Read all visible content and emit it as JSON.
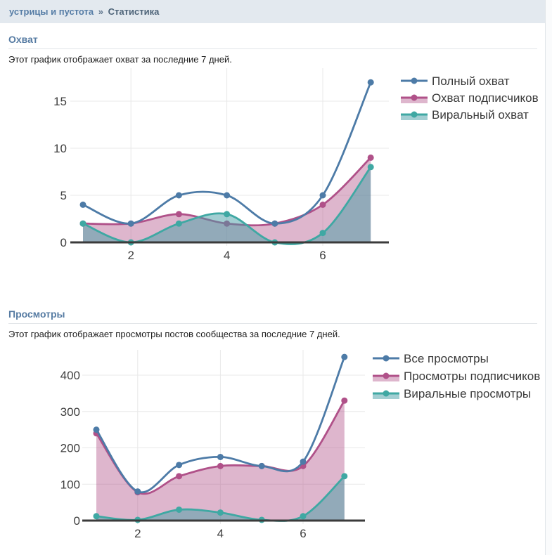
{
  "breadcrumb": {
    "group": "устрицы и пустота",
    "separator": "»",
    "current": "Статистика"
  },
  "sections": [
    {
      "title": "Охват",
      "description": "Этот график отображает охват за последние 7 дней."
    },
    {
      "title": "Просмотры",
      "description": "Этот график отображает просмотры постов сообщества за последние 7 дней."
    }
  ],
  "colors": {
    "topbar_bg": "#e3e9ef",
    "section_title": "#577ca3",
    "blue_line": "#4d7ba7",
    "pink_line": "#b05189",
    "teal_line": "#3fa8a3",
    "pink_fill": "rgba(176,81,137,0.42)",
    "teal_fill": "rgba(70,158,166,0.5)",
    "axis": "#3b3b3b",
    "grid": "#e8e8e8",
    "tick_label": "#3f3f3f",
    "legend_label": "#3a3a3a"
  },
  "chart_data": [
    {
      "type": "area",
      "title": "Охват",
      "x": [
        1,
        2,
        3,
        4,
        5,
        6,
        7
      ],
      "xticks": [
        2,
        4,
        6
      ],
      "yticks": [
        0,
        5,
        10,
        15
      ],
      "ylim": [
        0,
        17.5
      ],
      "xlabel": "",
      "ylabel": "",
      "grid": true,
      "legend_position": "top-right",
      "series": [
        {
          "name": "Полный охват",
          "color": "#4d7ba7",
          "fill": false,
          "values": [
            4,
            2,
            5,
            5,
            2,
            5,
            17
          ]
        },
        {
          "name": "Охват подписчиков",
          "color": "#b05189",
          "fill": true,
          "fill_color": "rgba(176,81,137,0.42)",
          "values": [
            2,
            2,
            3,
            2,
            2,
            4,
            9
          ]
        },
        {
          "name": "Виральный охват",
          "color": "#3fa8a3",
          "fill": true,
          "fill_color": "rgba(70,158,166,0.5)",
          "values": [
            2,
            0,
            2,
            3,
            0,
            1,
            8
          ]
        }
      ]
    },
    {
      "type": "area",
      "title": "Просмотры",
      "x": [
        1,
        2,
        3,
        4,
        5,
        6,
        7
      ],
      "xticks": [
        2,
        4,
        6
      ],
      "yticks": [
        0,
        100,
        200,
        300,
        400
      ],
      "ylim": [
        0,
        460
      ],
      "xlabel": "",
      "ylabel": "",
      "grid": true,
      "legend_position": "top-right",
      "series": [
        {
          "name": "Все просмотры",
          "color": "#4d7ba7",
          "fill": false,
          "values": [
            250,
            80,
            153,
            175,
            150,
            162,
            450
          ]
        },
        {
          "name": "Просмотры подписчиков",
          "color": "#b05189",
          "fill": true,
          "fill_color": "rgba(176,81,137,0.42)",
          "values": [
            240,
            78,
            122,
            150,
            150,
            150,
            330
          ]
        },
        {
          "name": "Виральные просмотры",
          "color": "#3fa8a3",
          "fill": true,
          "fill_color": "rgba(70,158,166,0.5)",
          "values": [
            12,
            2,
            30,
            22,
            2,
            12,
            122
          ]
        }
      ]
    }
  ]
}
